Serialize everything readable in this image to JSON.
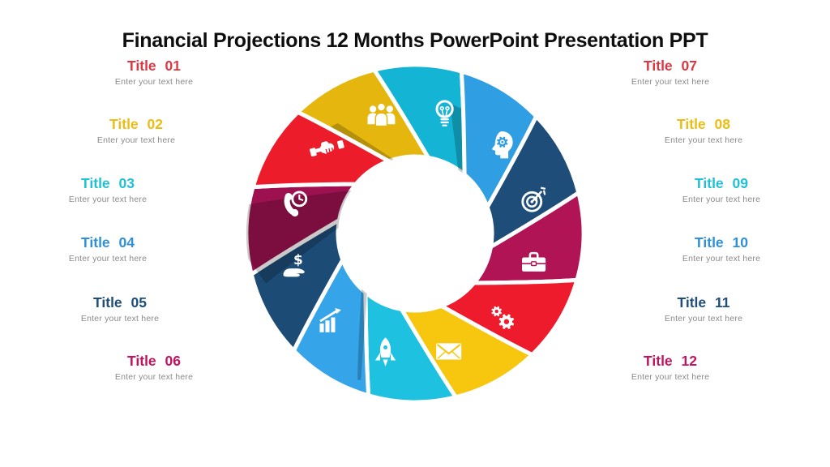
{
  "slide_title": "Financial Projections 12 Months PowerPoint Presentation PPT",
  "placeholder_text": "Enter your text here",
  "left_items": [
    {
      "label": "Title 01",
      "color": "#de3742"
    },
    {
      "label": "Title 02",
      "color": "#eebd13"
    },
    {
      "label": "Title 03",
      "color": "#1fc0d8"
    },
    {
      "label": "Title 04",
      "color": "#2e91d8"
    },
    {
      "label": "Title 05",
      "color": "#1f4e79"
    },
    {
      "label": "Title 06",
      "color": "#c3135f"
    }
  ],
  "right_items": [
    {
      "label": "Title 07",
      "color": "#de3742"
    },
    {
      "label": "Title 08",
      "color": "#eebd13"
    },
    {
      "label": "Title 09",
      "color": "#1fc0d8"
    },
    {
      "label": "Title 10",
      "color": "#2e91d8"
    },
    {
      "label": "Title 11",
      "color": "#1f4e79"
    },
    {
      "label": "Title 12",
      "color": "#c3135f"
    }
  ],
  "wheel": {
    "inner_color": "#ffffff",
    "shade_opacity": 0.21,
    "segments": [
      {
        "icon": "team-icon",
        "color": "#e5b70e",
        "angle": -16
      },
      {
        "icon": "idea-bulb-icon",
        "color": "#14b4d4",
        "angle": 14
      },
      {
        "icon": "mind-gear-icon",
        "color": "#2f9ee2",
        "angle": 44
      },
      {
        "icon": "target-icon",
        "color": "#1d4d78",
        "angle": 74
      },
      {
        "icon": "briefcase-icon",
        "color": "#b01455",
        "angle": 104
      },
      {
        "icon": "gears-icon",
        "color": "#ee1b2c",
        "angle": 134
      },
      {
        "icon": "mail-icon",
        "color": "#f7c70f",
        "angle": 164
      },
      {
        "icon": "rocket-icon",
        "color": "#1ec2e0",
        "angle": 194
      },
      {
        "icon": "growth-chart-icon",
        "color": "#36a4e8",
        "angle": 224
      },
      {
        "icon": "money-hand-icon",
        "color": "#1c4c76",
        "angle": 254
      },
      {
        "icon": "phone-clock-icon",
        "color": "#9e1150",
        "angle": 284
      },
      {
        "icon": "handshake-icon",
        "color": "#ec1c2b",
        "angle": 314
      }
    ]
  }
}
